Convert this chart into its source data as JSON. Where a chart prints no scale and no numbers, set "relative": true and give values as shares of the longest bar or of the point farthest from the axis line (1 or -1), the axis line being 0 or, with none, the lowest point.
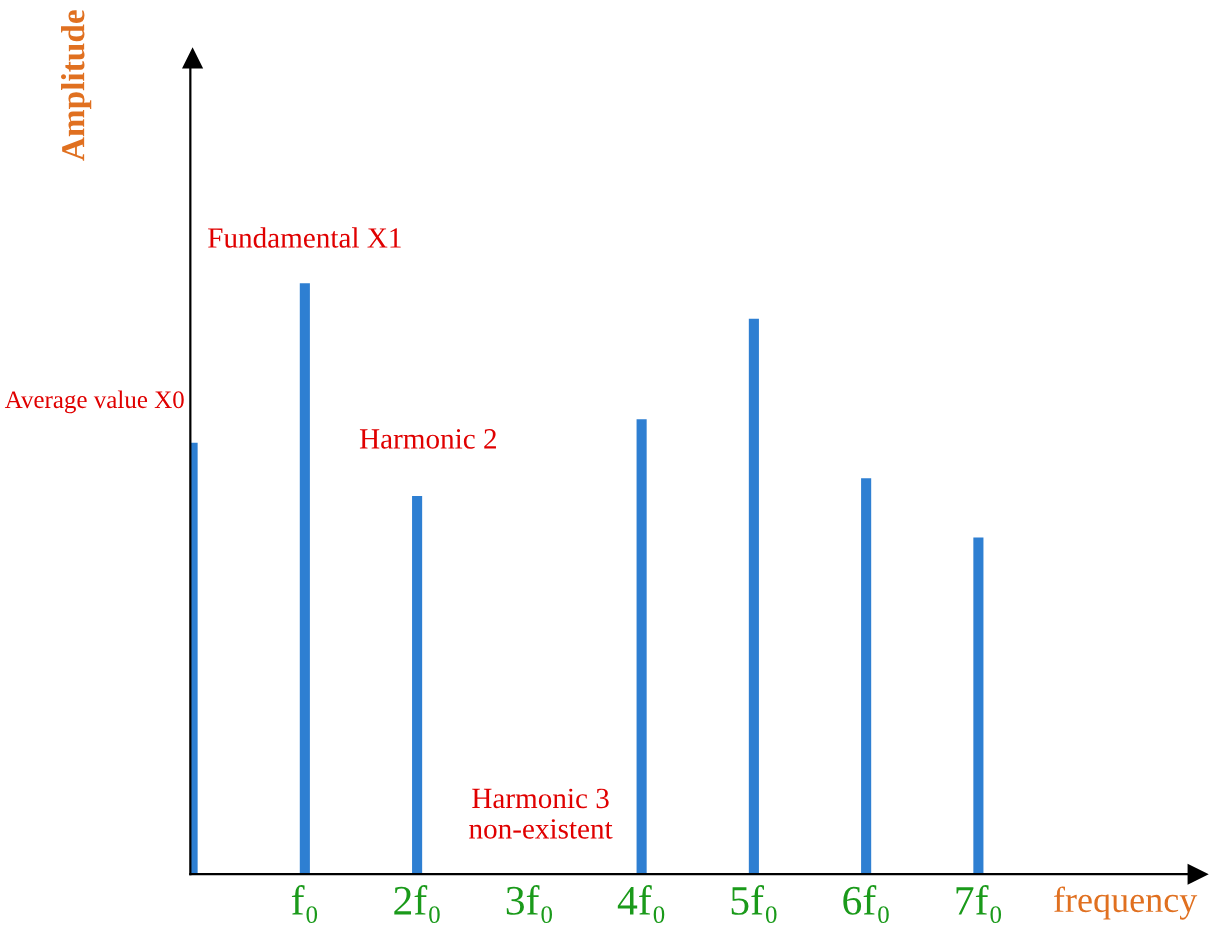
{
  "chart_data": {
    "type": "bar",
    "relative": true,
    "xlabel": "frequency",
    "ylabel": "Amplitude",
    "categories": [
      null,
      "f₀",
      "2f₀",
      "3f₀",
      "4f₀",
      "5f₀",
      "6f₀",
      "7f₀"
    ],
    "values": [
      0.73,
      1,
      0.64,
      0,
      0.77,
      0.94,
      0.67,
      0.57
    ],
    "color": "#2e7fd2",
    "annotations": [
      "Average value X0",
      "Fundamental X1",
      "Harmonic 2",
      "Harmonic 3\nnon-existent"
    ],
    "legend": false
  }
}
